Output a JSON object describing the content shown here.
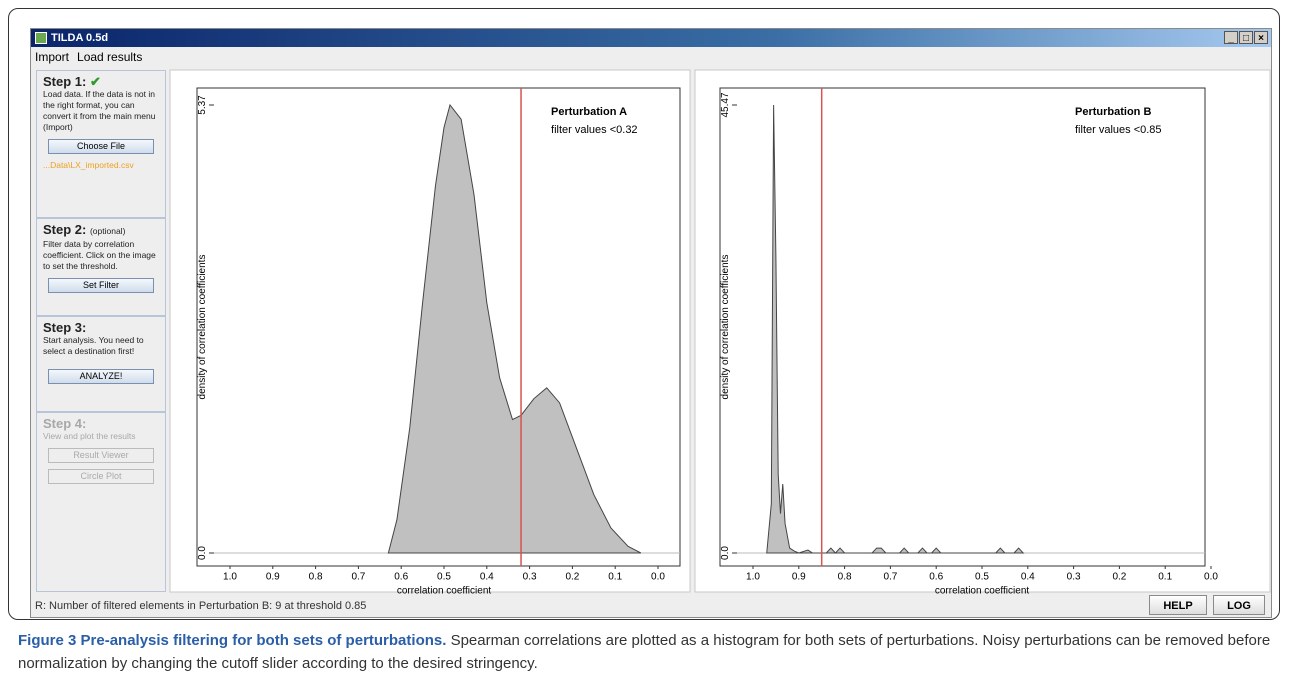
{
  "window": {
    "title": "TILDA 0.5d",
    "menu": [
      "Import",
      "Load results"
    ],
    "controls": [
      "_",
      "□",
      "×"
    ]
  },
  "sidebar": {
    "steps": [
      {
        "heading": "Step 1:",
        "mark": "✔",
        "text": "Load data. If the data is not in the right format, you can convert it from the main menu (Import)",
        "buttons": [
          "Choose File"
        ],
        "file": "...Data\\LX_imported.csv"
      },
      {
        "heading": "Step 2:",
        "note": "(optional)",
        "text": "Filter data by correlation coefficient. Click on the image to set the threshold.",
        "buttons": [
          "Set Filter"
        ]
      },
      {
        "heading": "Step 3:",
        "text": "Start analysis. You need to select a destination first!",
        "buttons": [
          "ANALYZE!"
        ]
      },
      {
        "heading": "Step 4:",
        "text": "View and plot the results",
        "buttons": [
          "Result Viewer",
          "Circle Plot"
        ]
      }
    ]
  },
  "chart_data": [
    {
      "type": "area",
      "title": "Perturbation A",
      "annotation": "filter values <0.32",
      "threshold": 0.32,
      "threshold_color": "#d9534f",
      "x": [
        0.63,
        0.61,
        0.58,
        0.55,
        0.52,
        0.5,
        0.486,
        0.46,
        0.43,
        0.4,
        0.37,
        0.34,
        0.32,
        0.29,
        0.26,
        0.23,
        0.19,
        0.15,
        0.11,
        0.07,
        0.04
      ],
      "values": [
        0,
        0.4,
        1.5,
        3.0,
        4.4,
        5.1,
        5.37,
        5.2,
        4.3,
        3.0,
        2.1,
        1.6,
        1.65,
        1.85,
        1.98,
        1.8,
        1.25,
        0.7,
        0.3,
        0.08,
        0
      ],
      "color": "#c0c0c0",
      "xlabel": "correlation coefficient",
      "ylabel": "density of correlation coefficients",
      "xlim": [
        1,
        0
      ],
      "ylim": [
        0,
        5.37
      ],
      "xticks": [
        {
          "value": 1,
          "label": "1.0"
        },
        0.9,
        0.8,
        0.7,
        0.6,
        0.5,
        0.4,
        0.3,
        0.2,
        0.1,
        {
          "value": 0,
          "label": "0.0"
        }
      ],
      "yticks": [
        {
          "value": 0,
          "label": "0.0"
        },
        5.37
      ]
    },
    {
      "type": "area",
      "title": "Perturbation B",
      "annotation": "filter values <0.85",
      "threshold": 0.85,
      "threshold_color": "#d9534f",
      "x": [
        0.97,
        0.96,
        0.955,
        0.95,
        0.945,
        0.94,
        0.935,
        0.93,
        0.92,
        0.91,
        0.9,
        0.88,
        0.87,
        0.84,
        0.83,
        0.82,
        0.81,
        0.8,
        0.74,
        0.73,
        0.72,
        0.71,
        0.68,
        0.67,
        0.66,
        0.64,
        0.63,
        0.62,
        0.61,
        0.6,
        0.59,
        0.47,
        0.46,
        0.45,
        0.43,
        0.42,
        0.41
      ],
      "values": [
        0,
        5,
        45.47,
        30,
        8,
        4,
        7,
        3,
        0.5,
        0.2,
        0,
        0.3,
        0,
        0,
        0.5,
        0,
        0.5,
        0,
        0,
        0.5,
        0.5,
        0,
        0,
        0.5,
        0,
        0,
        0.5,
        0,
        0,
        0.5,
        0,
        0,
        0.5,
        0,
        0,
        0.5,
        0
      ],
      "color": "#c0c0c0",
      "xlabel": "correlation coefficient",
      "ylabel": "density of correlation coefficients",
      "xlim": [
        1,
        0
      ],
      "ylim": [
        0,
        45.47
      ],
      "xticks": [
        {
          "value": 1,
          "label": "1.0"
        },
        0.9,
        0.8,
        0.7,
        0.6,
        0.5,
        0.4,
        0.3,
        0.2,
        0.1,
        {
          "value": 0,
          "label": "0.0"
        }
      ],
      "yticks": [
        {
          "value": 0,
          "label": "0.0"
        },
        45.47
      ]
    }
  ],
  "status": {
    "text": "R: Number of filtered elements in Perturbation B: 9 at threshold 0.85",
    "buttons": [
      "HELP",
      "LOG"
    ]
  },
  "caption": {
    "label": "Figure 3 Pre-analysis filtering for both sets of perturbations.",
    "text": "Spearman correlations are plotted as a histogram for both sets of perturbations. Noisy perturbations can be removed before normalization by changing the cutoff slider according to the desired stringency."
  }
}
